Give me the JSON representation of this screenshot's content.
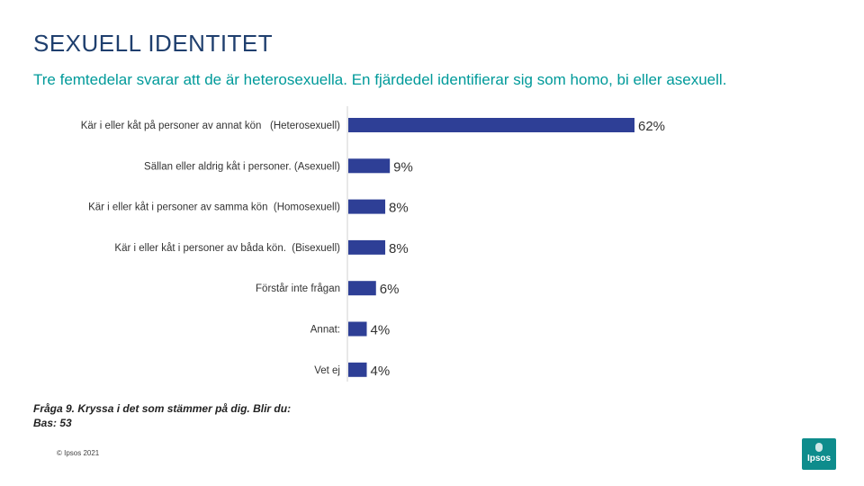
{
  "title": "SEXUELL IDENTITET",
  "subtitle": "Tre femtedelar svarar att de är heterosexuella. En fjärdedel identifierar sig som homo, bi  eller asexuell.",
  "footnote": {
    "question": "Fråga 9. Kryssa i det som stämmer på dig. Blir du:",
    "base": "Bas: 53"
  },
  "copyright": "© Ipsos 2021",
  "logo_text": "Ipsos",
  "colors": {
    "bar": "#2e3f96",
    "title": "#1f3f6e",
    "subtitle": "#009a9a",
    "logo": "#0e8c8c"
  },
  "chart_data": {
    "type": "bar",
    "orientation": "horizontal",
    "categories": [
      "Kär i eller kåt på personer av annat kön   (Heterosexuell)",
      "Sällan eller aldrig kåt i personer. (Asexuell)",
      "Kär i eller kåt i personer av samma kön  (Homosexuell)",
      "Kär i eller kåt i personer av båda kön.  (Bisexuell)",
      "Förstår inte frågan",
      "Annat:",
      "Vet ej"
    ],
    "values": [
      62,
      9,
      8,
      8,
      6,
      4,
      4
    ],
    "value_labels": [
      "62%",
      "9%",
      "8%",
      "8%",
      "6%",
      "4%",
      "4%"
    ],
    "unit": "%",
    "xlim": [
      0,
      62
    ]
  }
}
